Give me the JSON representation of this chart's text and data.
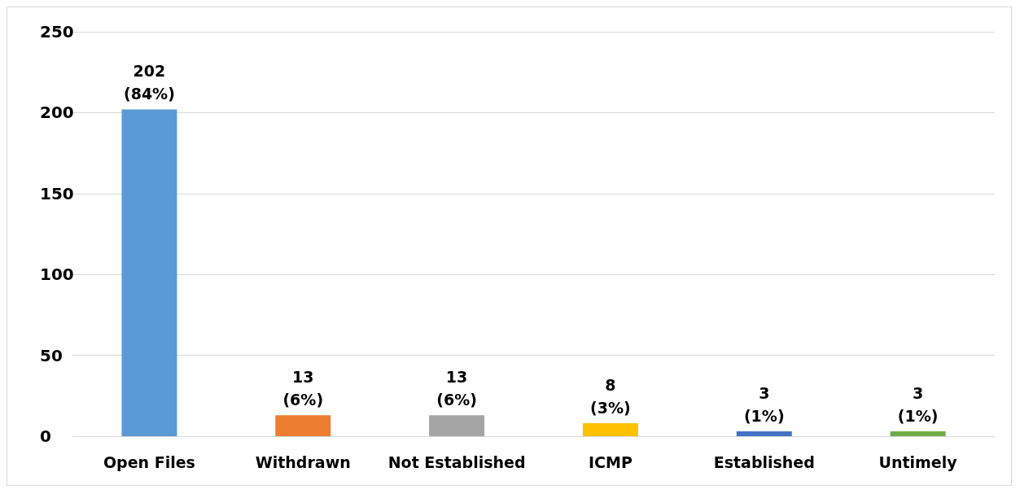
{
  "chart_data": {
    "type": "bar",
    "categories": [
      "Open Files",
      "Withdrawn",
      "Not Established",
      "ICMP",
      "Established",
      "Untimely"
    ],
    "values": [
      202,
      13,
      13,
      8,
      3,
      3
    ],
    "colors": [
      "#5b9bd5",
      "#ed7d31",
      "#a5a5a5",
      "#ffc000",
      "#4472c4",
      "#70ad47"
    ],
    "value_labels": [
      "202\n(84%)",
      "13\n(6%)",
      "13\n(6%)",
      "8\n(3%)",
      "3\n(1%)",
      "3\n(1%)"
    ],
    "ylim": [
      0,
      250
    ],
    "yticks": [
      0,
      50,
      100,
      150,
      200,
      250
    ],
    "grid": "y"
  }
}
